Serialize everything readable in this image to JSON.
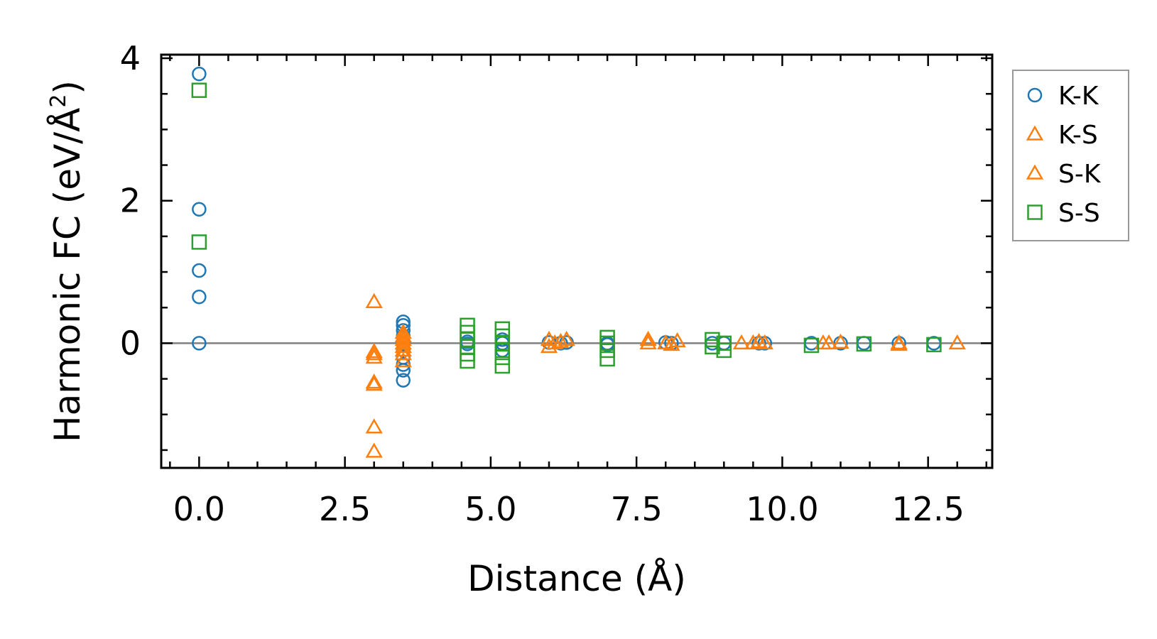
{
  "chart_data": {
    "type": "scatter",
    "xlabel": "Distance (Å)",
    "ylabel": "Harmonic FC (eV/Å²)",
    "ylabel_parts": {
      "pre": "Harmonic FC (eV/Å",
      "sup": "2",
      "post": ")"
    },
    "xlim": [
      -0.65,
      13.6
    ],
    "ylim": [
      -1.75,
      4.05
    ],
    "x_ticks": [
      0.0,
      2.5,
      5.0,
      7.5,
      10.0,
      12.5
    ],
    "x_tick_labels": [
      "0.0",
      "2.5",
      "5.0",
      "7.5",
      "10.0",
      "12.5"
    ],
    "y_ticks": [
      0,
      2,
      4
    ],
    "y_tick_labels": [
      "0",
      "2",
      "4"
    ],
    "zero_line": true,
    "grid": false,
    "legend_position": "outside-right",
    "series": [
      {
        "name": "K-K",
        "marker": "circle",
        "color": "#1f77b4",
        "points": [
          [
            0,
            3.78
          ],
          [
            0,
            1.88
          ],
          [
            0,
            1.02
          ],
          [
            0,
            0.65
          ],
          [
            0,
            0.0
          ],
          [
            3.5,
            0.3
          ],
          [
            3.5,
            0.25
          ],
          [
            3.5,
            0.18
          ],
          [
            3.5,
            0.1
          ],
          [
            3.5,
            0.0
          ],
          [
            3.5,
            -0.1
          ],
          [
            3.5,
            -0.2
          ],
          [
            3.5,
            -0.3
          ],
          [
            3.5,
            -0.38
          ],
          [
            3.5,
            -0.52
          ],
          [
            4.6,
            0.02
          ],
          [
            4.6,
            -0.01
          ],
          [
            5.2,
            0.05
          ],
          [
            5.2,
            0.0
          ],
          [
            5.2,
            -0.1
          ],
          [
            6.0,
            0.01
          ],
          [
            6.2,
            0.0
          ],
          [
            6.3,
            0.01
          ],
          [
            7.0,
            0.0
          ],
          [
            7.0,
            -0.02
          ],
          [
            8.0,
            0.01
          ],
          [
            8.1,
            0.0
          ],
          [
            8.8,
            0.0
          ],
          [
            9.0,
            0.0
          ],
          [
            9.6,
            0.0
          ],
          [
            9.7,
            0.0
          ],
          [
            10.5,
            0.0
          ],
          [
            11.0,
            0.0
          ],
          [
            11.4,
            0.0
          ],
          [
            12.0,
            0.0
          ],
          [
            12.6,
            0.0
          ]
        ]
      },
      {
        "name": "K-S",
        "marker": "triangle",
        "color": "#ff7f0e",
        "points": [
          [
            3.0,
            0.58
          ],
          [
            3.0,
            -0.15
          ],
          [
            3.0,
            -0.2
          ],
          [
            3.0,
            -0.55
          ],
          [
            3.0,
            -0.58
          ],
          [
            3.0,
            -1.18
          ],
          [
            3.0,
            -1.52
          ],
          [
            3.5,
            0.15
          ],
          [
            3.5,
            0.05
          ],
          [
            3.5,
            -0.05
          ],
          [
            3.5,
            -0.15
          ],
          [
            3.5,
            -0.25
          ],
          [
            6.0,
            0.05
          ],
          [
            6.1,
            0.0
          ],
          [
            6.3,
            0.05
          ],
          [
            7.7,
            0.05
          ],
          [
            8.0,
            0.0
          ],
          [
            8.2,
            0.03
          ],
          [
            9.3,
            0.0
          ],
          [
            9.6,
            0.02
          ],
          [
            9.7,
            0.0
          ],
          [
            10.7,
            0.0
          ],
          [
            11.0,
            0.01
          ],
          [
            12.0,
            0.0
          ],
          [
            13.0,
            0.0
          ]
        ]
      },
      {
        "name": "S-K",
        "marker": "triangle",
        "color": "#ff7f0e",
        "points": [
          [
            3.0,
            -0.12
          ],
          [
            3.5,
            0.1
          ],
          [
            3.5,
            -0.1
          ],
          [
            3.5,
            0.0
          ],
          [
            6.0,
            -0.05
          ],
          [
            6.2,
            0.02
          ],
          [
            7.7,
            0.0
          ],
          [
            8.1,
            -0.02
          ],
          [
            9.5,
            0.0
          ],
          [
            10.8,
            0.0
          ],
          [
            12.0,
            -0.02
          ]
        ]
      },
      {
        "name": "S-S",
        "marker": "square",
        "color": "#2ca02c",
        "points": [
          [
            0,
            3.55
          ],
          [
            0,
            1.42
          ],
          [
            4.6,
            0.25
          ],
          [
            4.6,
            0.15
          ],
          [
            4.6,
            0.05
          ],
          [
            4.6,
            -0.05
          ],
          [
            4.6,
            -0.15
          ],
          [
            4.6,
            -0.25
          ],
          [
            5.2,
            0.2
          ],
          [
            5.2,
            0.1
          ],
          [
            5.2,
            0.0
          ],
          [
            5.2,
            -0.1
          ],
          [
            5.2,
            -0.2
          ],
          [
            5.2,
            -0.32
          ],
          [
            7.0,
            0.08
          ],
          [
            7.0,
            0.0
          ],
          [
            7.0,
            -0.1
          ],
          [
            7.0,
            -0.22
          ],
          [
            8.8,
            0.05
          ],
          [
            8.8,
            -0.05
          ],
          [
            9.0,
            0.0
          ],
          [
            9.0,
            -0.1
          ],
          [
            10.5,
            -0.03
          ],
          [
            11.4,
            -0.01
          ],
          [
            12.6,
            -0.02
          ]
        ]
      }
    ]
  }
}
